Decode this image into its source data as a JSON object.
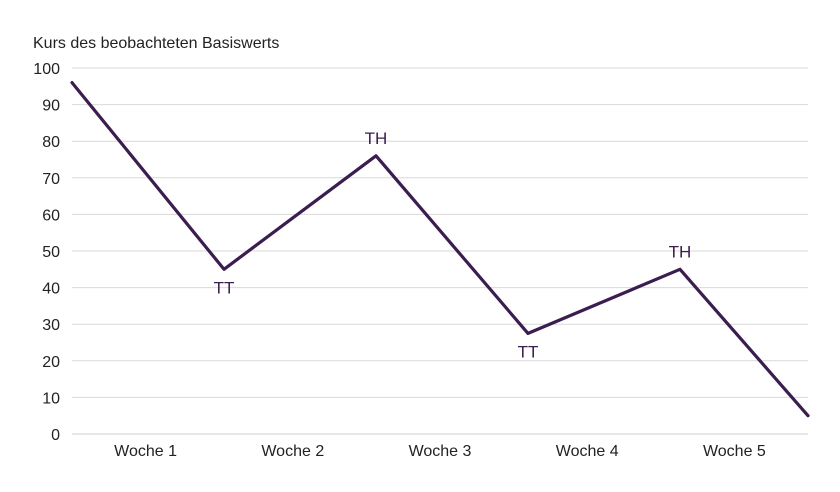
{
  "chart_data": {
    "type": "line",
    "ylabel": "Kurs des beobachteten Basiswerts",
    "xlabel": "",
    "ylim": [
      0,
      100
    ],
    "yticks": [
      0,
      10,
      20,
      30,
      40,
      50,
      60,
      70,
      80,
      90,
      100
    ],
    "grid": true,
    "categories": [
      "Woche 1",
      "Woche 2",
      "Woche 3",
      "Woche 4",
      "Woche 5"
    ],
    "x_range": [
      0,
      4.6
    ],
    "series": [
      {
        "points": [
          {
            "x": 0,
            "y": 96
          },
          {
            "x": 0.95,
            "y": 45
          },
          {
            "x": 1.9,
            "y": 76
          },
          {
            "x": 2.85,
            "y": 27.5
          },
          {
            "x": 3.8,
            "y": 45
          },
          {
            "x": 4.6,
            "y": 5
          }
        ]
      }
    ],
    "annotations": [
      {
        "text": "TT",
        "x": 0.95,
        "y": 45,
        "position": "below"
      },
      {
        "text": "TH",
        "x": 1.9,
        "y": 76,
        "position": "above"
      },
      {
        "text": "TT",
        "x": 2.85,
        "y": 27.5,
        "position": "below"
      },
      {
        "text": "TH",
        "x": 3.8,
        "y": 45,
        "position": "above"
      }
    ]
  },
  "colors": {
    "line": "#3b1d4f",
    "annotation": "#3b1d4f",
    "grid": "#d9d9d9",
    "text": "#222222"
  }
}
